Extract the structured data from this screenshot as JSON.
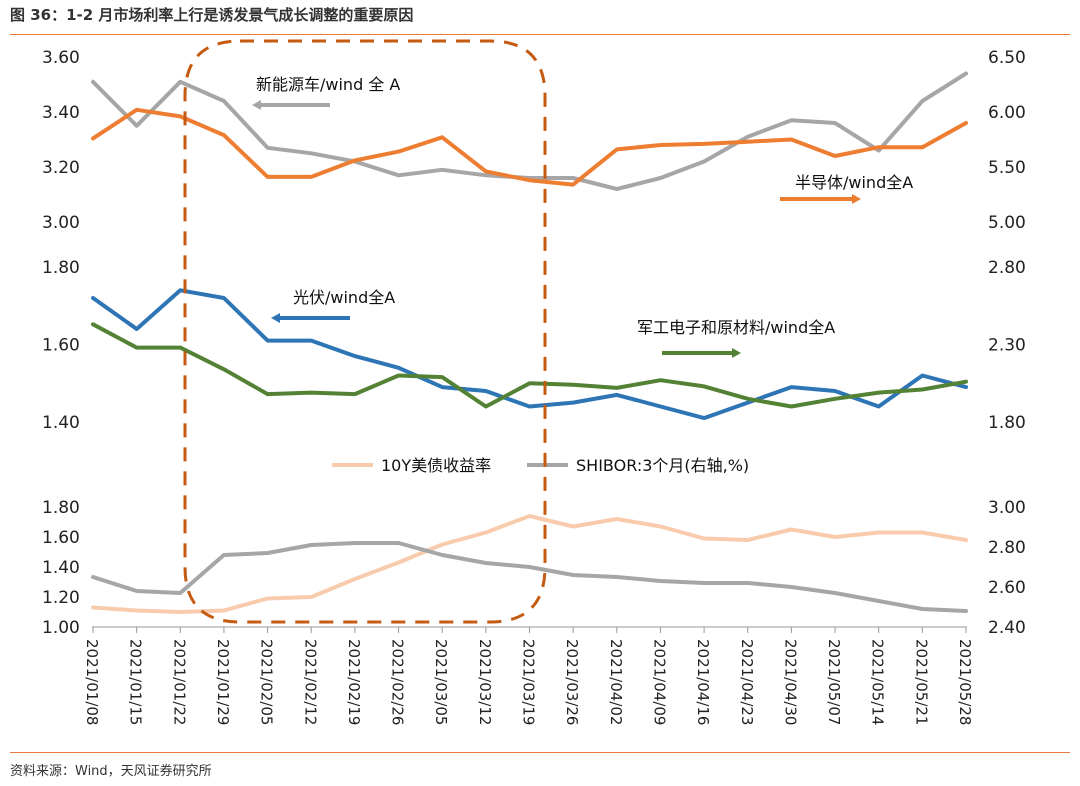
{
  "figure": {
    "title": "图 36：1-2 月市场利率上行是诱发景气成长调整的重要原因",
    "source": "资料来源：Wind，天风证券研究所"
  },
  "chart_data": {
    "type": "line",
    "x": [
      "2021/01/08",
      "2021/01/15",
      "2021/01/22",
      "2021/01/29",
      "2021/02/05",
      "2021/02/12",
      "2021/02/19",
      "2021/02/26",
      "2021/03/05",
      "2021/03/12",
      "2021/03/19",
      "2021/03/26",
      "2021/04/02",
      "2021/04/09",
      "2021/04/16",
      "2021/04/23",
      "2021/04/30",
      "2021/05/07",
      "2021/05/14",
      "2021/05/21",
      "2021/05/28"
    ],
    "panels": [
      {
        "left_axis": {
          "ticks": [
            "3.00",
            "3.20",
            "3.40",
            "3.60"
          ],
          "range": [
            3.0,
            3.6
          ]
        },
        "right_axis": {
          "ticks": [
            "5.00",
            "5.50",
            "6.00",
            "6.50"
          ],
          "range": [
            5.0,
            6.5
          ]
        },
        "series": [
          {
            "name": "新能源车/wind 全 A",
            "axis": "left",
            "color": "#a6a6a6",
            "values": [
              3.51,
              3.35,
              3.51,
              3.44,
              3.27,
              3.25,
              3.22,
              3.17,
              3.19,
              3.17,
              3.16,
              3.16,
              3.12,
              3.16,
              3.22,
              3.31,
              3.37,
              3.36,
              3.26,
              3.44,
              3.54
            ]
          },
          {
            "name": "半导体/wind全A",
            "axis": "right",
            "color": "#ed7d31",
            "values": [
              5.76,
              6.02,
              5.96,
              5.79,
              5.41,
              5.41,
              5.56,
              5.64,
              5.77,
              5.46,
              5.38,
              5.34,
              5.66,
              5.7,
              5.71,
              5.73,
              5.75,
              5.6,
              5.68,
              5.68,
              5.9
            ]
          }
        ],
        "annotations": [
          {
            "text": "新能源车/wind 全 A",
            "arrow": "left"
          },
          {
            "text": "半导体/wind全A",
            "arrow": "right"
          }
        ]
      },
      {
        "left_axis": {
          "ticks": [
            "1.40",
            "1.60",
            "1.80"
          ],
          "range": [
            1.4,
            1.8
          ]
        },
        "right_axis": {
          "ticks": [
            "1.80",
            "2.30",
            "2.80"
          ],
          "range": [
            1.8,
            2.8
          ]
        },
        "series": [
          {
            "name": "光伏/wind全A",
            "axis": "left",
            "color": "#2e75b6",
            "values": [
              1.72,
              1.64,
              1.74,
              1.72,
              1.61,
              1.61,
              1.57,
              1.54,
              1.49,
              1.48,
              1.44,
              1.45,
              1.47,
              1.44,
              1.41,
              1.45,
              1.49,
              1.48,
              1.44,
              1.52,
              1.49
            ]
          },
          {
            "name": "军工电子和原材料/wind全A",
            "axis": "right",
            "color": "#548235",
            "values": [
              2.43,
              2.28,
              2.28,
              2.14,
              1.98,
              1.99,
              1.98,
              2.1,
              2.09,
              1.9,
              2.05,
              2.04,
              2.02,
              2.07,
              2.03,
              1.95,
              1.9,
              1.95,
              1.99,
              2.01,
              2.06
            ]
          }
        ],
        "annotations": [
          {
            "text": "光伏/wind全A",
            "arrow": "left"
          },
          {
            "text": "军工电子和原材料/wind全A",
            "arrow": "right"
          }
        ]
      },
      {
        "left_axis": {
          "ticks": [
            "1.00",
            "1.20",
            "1.40",
            "1.60",
            "1.80"
          ],
          "range": [
            1.0,
            1.8
          ]
        },
        "right_axis": {
          "ticks": [
            "2.40",
            "2.60",
            "2.80",
            "3.00"
          ],
          "range": [
            2.4,
            3.0
          ]
        },
        "series": [
          {
            "name": "10Y美债收益率",
            "axis": "left",
            "color": "#f8cbad",
            "values": [
              1.13,
              1.11,
              1.1,
              1.11,
              1.19,
              1.2,
              1.32,
              1.43,
              1.55,
              1.63,
              1.74,
              1.67,
              1.72,
              1.67,
              1.59,
              1.58,
              1.65,
              1.6,
              1.63,
              1.63,
              1.58
            ]
          },
          {
            "name": "SHIBOR:3个月(右轴,%)",
            "axis": "right",
            "color": "#a6a6a6",
            "values": [
              2.65,
              2.58,
              2.57,
              2.76,
              2.77,
              2.81,
              2.82,
              2.82,
              2.76,
              2.72,
              2.7,
              2.66,
              2.65,
              2.63,
              2.62,
              2.62,
              2.6,
              2.57,
              2.53,
              2.49,
              2.48
            ]
          }
        ],
        "legend": {
          "placement": "top-center",
          "items": [
            "10Y美债收益率",
            "SHIBOR:3个月(右轴,%)"
          ]
        }
      }
    ],
    "highlight": {
      "shape": "dashed rounded rectangle",
      "color": "#c55a11",
      "from": "2021/01/22",
      "to": "2021/03/19"
    }
  }
}
